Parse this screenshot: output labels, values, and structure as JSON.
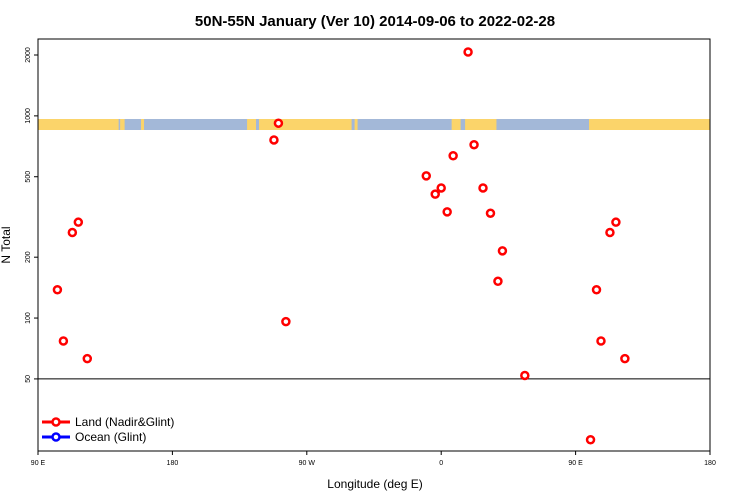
{
  "chart_data": {
    "type": "scatter",
    "title": "50N-55N January (Ver 10)   2014-09-06 to 2022-02-28",
    "xlabel": "Longitude (deg E)",
    "ylabel": "N Total",
    "xlim": [
      90,
      540
    ],
    "ylim_log": [
      22,
      2400
    ],
    "x_ticks": [
      {
        "value": 90,
        "label": "90 E"
      },
      {
        "value": 180,
        "label": "180"
      },
      {
        "value": 270,
        "label": "90 W"
      },
      {
        "value": 360,
        "label": "0"
      },
      {
        "value": 450,
        "label": "90 E"
      },
      {
        "value": 540,
        "label": "180"
      }
    ],
    "y_ticks": [
      50,
      100,
      200,
      500,
      1000,
      2000
    ],
    "reference_line": 50,
    "series": [
      {
        "name": "Land (Nadir&Glint)",
        "color": "#ff0000",
        "points": [
          [
            103,
            138
          ],
          [
            107,
            77
          ],
          [
            113,
            265
          ],
          [
            117,
            298
          ],
          [
            123,
            63
          ],
          [
            248,
            760
          ],
          [
            251,
            920
          ],
          [
            256,
            96
          ],
          [
            350,
            505
          ],
          [
            356,
            410
          ],
          [
            360,
            440
          ],
          [
            364,
            335
          ],
          [
            368,
            635
          ],
          [
            378,
            2070
          ],
          [
            382,
            720
          ],
          [
            388,
            440
          ],
          [
            393,
            330
          ],
          [
            398,
            152
          ],
          [
            401,
            215
          ],
          [
            416,
            52
          ],
          [
            460,
            25
          ],
          [
            464,
            138
          ],
          [
            467,
            77
          ],
          [
            473,
            265
          ],
          [
            477,
            298
          ],
          [
            483,
            63
          ]
        ]
      },
      {
        "name": "Ocean (Glint)",
        "color": "#0000ff",
        "points": []
      }
    ],
    "legend_position": "bottom-left"
  },
  "map_strip": {
    "land_color": "#fbd46a",
    "ocean_color": "#a3b8d8",
    "land_ranges": [
      [
        90,
        144
      ],
      [
        145,
        148
      ],
      [
        159,
        161
      ],
      [
        230,
        236
      ],
      [
        238,
        300
      ],
      [
        302,
        304
      ],
      [
        367,
        373
      ],
      [
        376,
        397
      ],
      [
        459,
        541
      ]
    ]
  }
}
